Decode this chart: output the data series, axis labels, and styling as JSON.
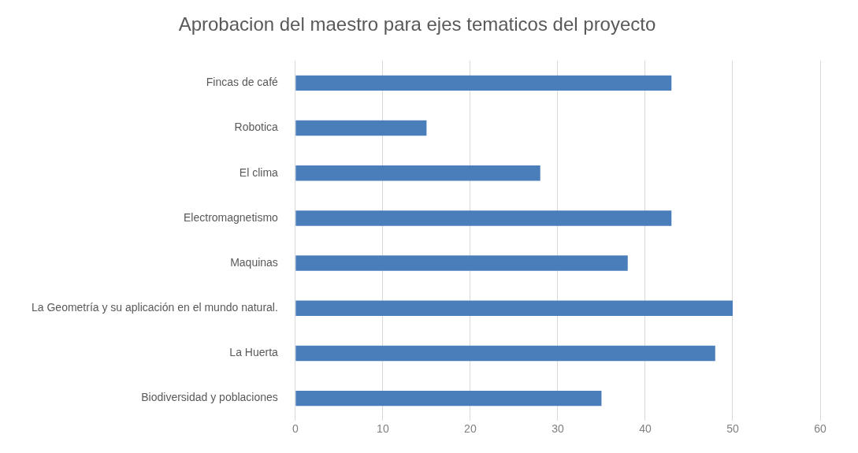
{
  "chart_data": {
    "type": "bar",
    "orientation": "horizontal",
    "title": "Aprobacion del maestro para ejes tematicos del proyecto",
    "categories": [
      "Fincas de café",
      "Robotica",
      "El clima",
      "Electromagnetismo",
      "Maquinas",
      "La Geometría y su aplicación en el mundo natural.",
      "La Huerta",
      "Biodiversidad y poblaciones"
    ],
    "values": [
      43,
      15,
      28,
      43,
      38,
      50,
      48,
      35
    ],
    "color": "#4a7ebb",
    "xlim": [
      0,
      60
    ],
    "xticks": [
      0,
      10,
      20,
      30,
      40,
      50,
      60
    ],
    "grid": "x",
    "legend": false
  }
}
